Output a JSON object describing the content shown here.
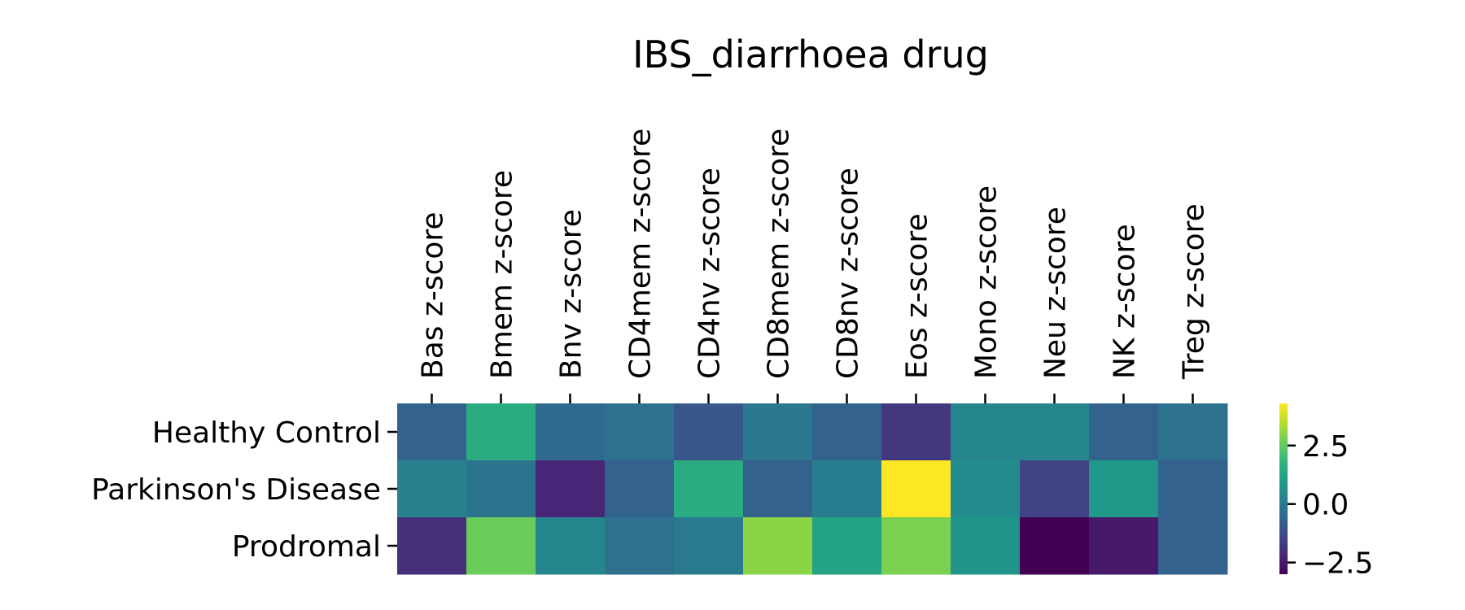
{
  "chart_data": {
    "type": "heatmap",
    "title": "IBS_diarrhoea drug",
    "x_categories": [
      "Bas z-score",
      "Bmem z-score",
      "Bnv z-score",
      "CD4mem z-score",
      "CD4nv z-score",
      "CD8mem z-score",
      "CD8nv z-score",
      "Eos z-score",
      "Mono z-score",
      "Neu z-score",
      "NK z-score",
      "Treg z-score"
    ],
    "y_categories": [
      "Healthy Control",
      "Parkinson's Disease",
      "Prodromal"
    ],
    "values": [
      [
        -0.7,
        1.5,
        -0.5,
        -0.3,
        -1.0,
        -0.1,
        -0.7,
        -1.8,
        0.4,
        0.4,
        -0.7,
        -0.3
      ],
      [
        0.2,
        -0.2,
        -2.2,
        -0.7,
        1.5,
        -0.7,
        0.1,
        4.3,
        0.5,
        -1.5,
        0.9,
        -0.7
      ],
      [
        -2.0,
        2.6,
        0.4,
        -0.3,
        0.0,
        3.0,
        1.2,
        2.8,
        0.8,
        -3.0,
        -2.5,
        -0.7
      ]
    ],
    "colorbar": {
      "colormap": "viridis",
      "vmin": -3.0,
      "vmax": 4.3,
      "ticks": [
        2.5,
        0.0,
        -2.5
      ],
      "tick_labels": [
        "2.5",
        "0.0",
        "−2.5"
      ]
    },
    "xlabel": "",
    "ylabel": "",
    "x_tick_position": "top",
    "grid": false
  }
}
